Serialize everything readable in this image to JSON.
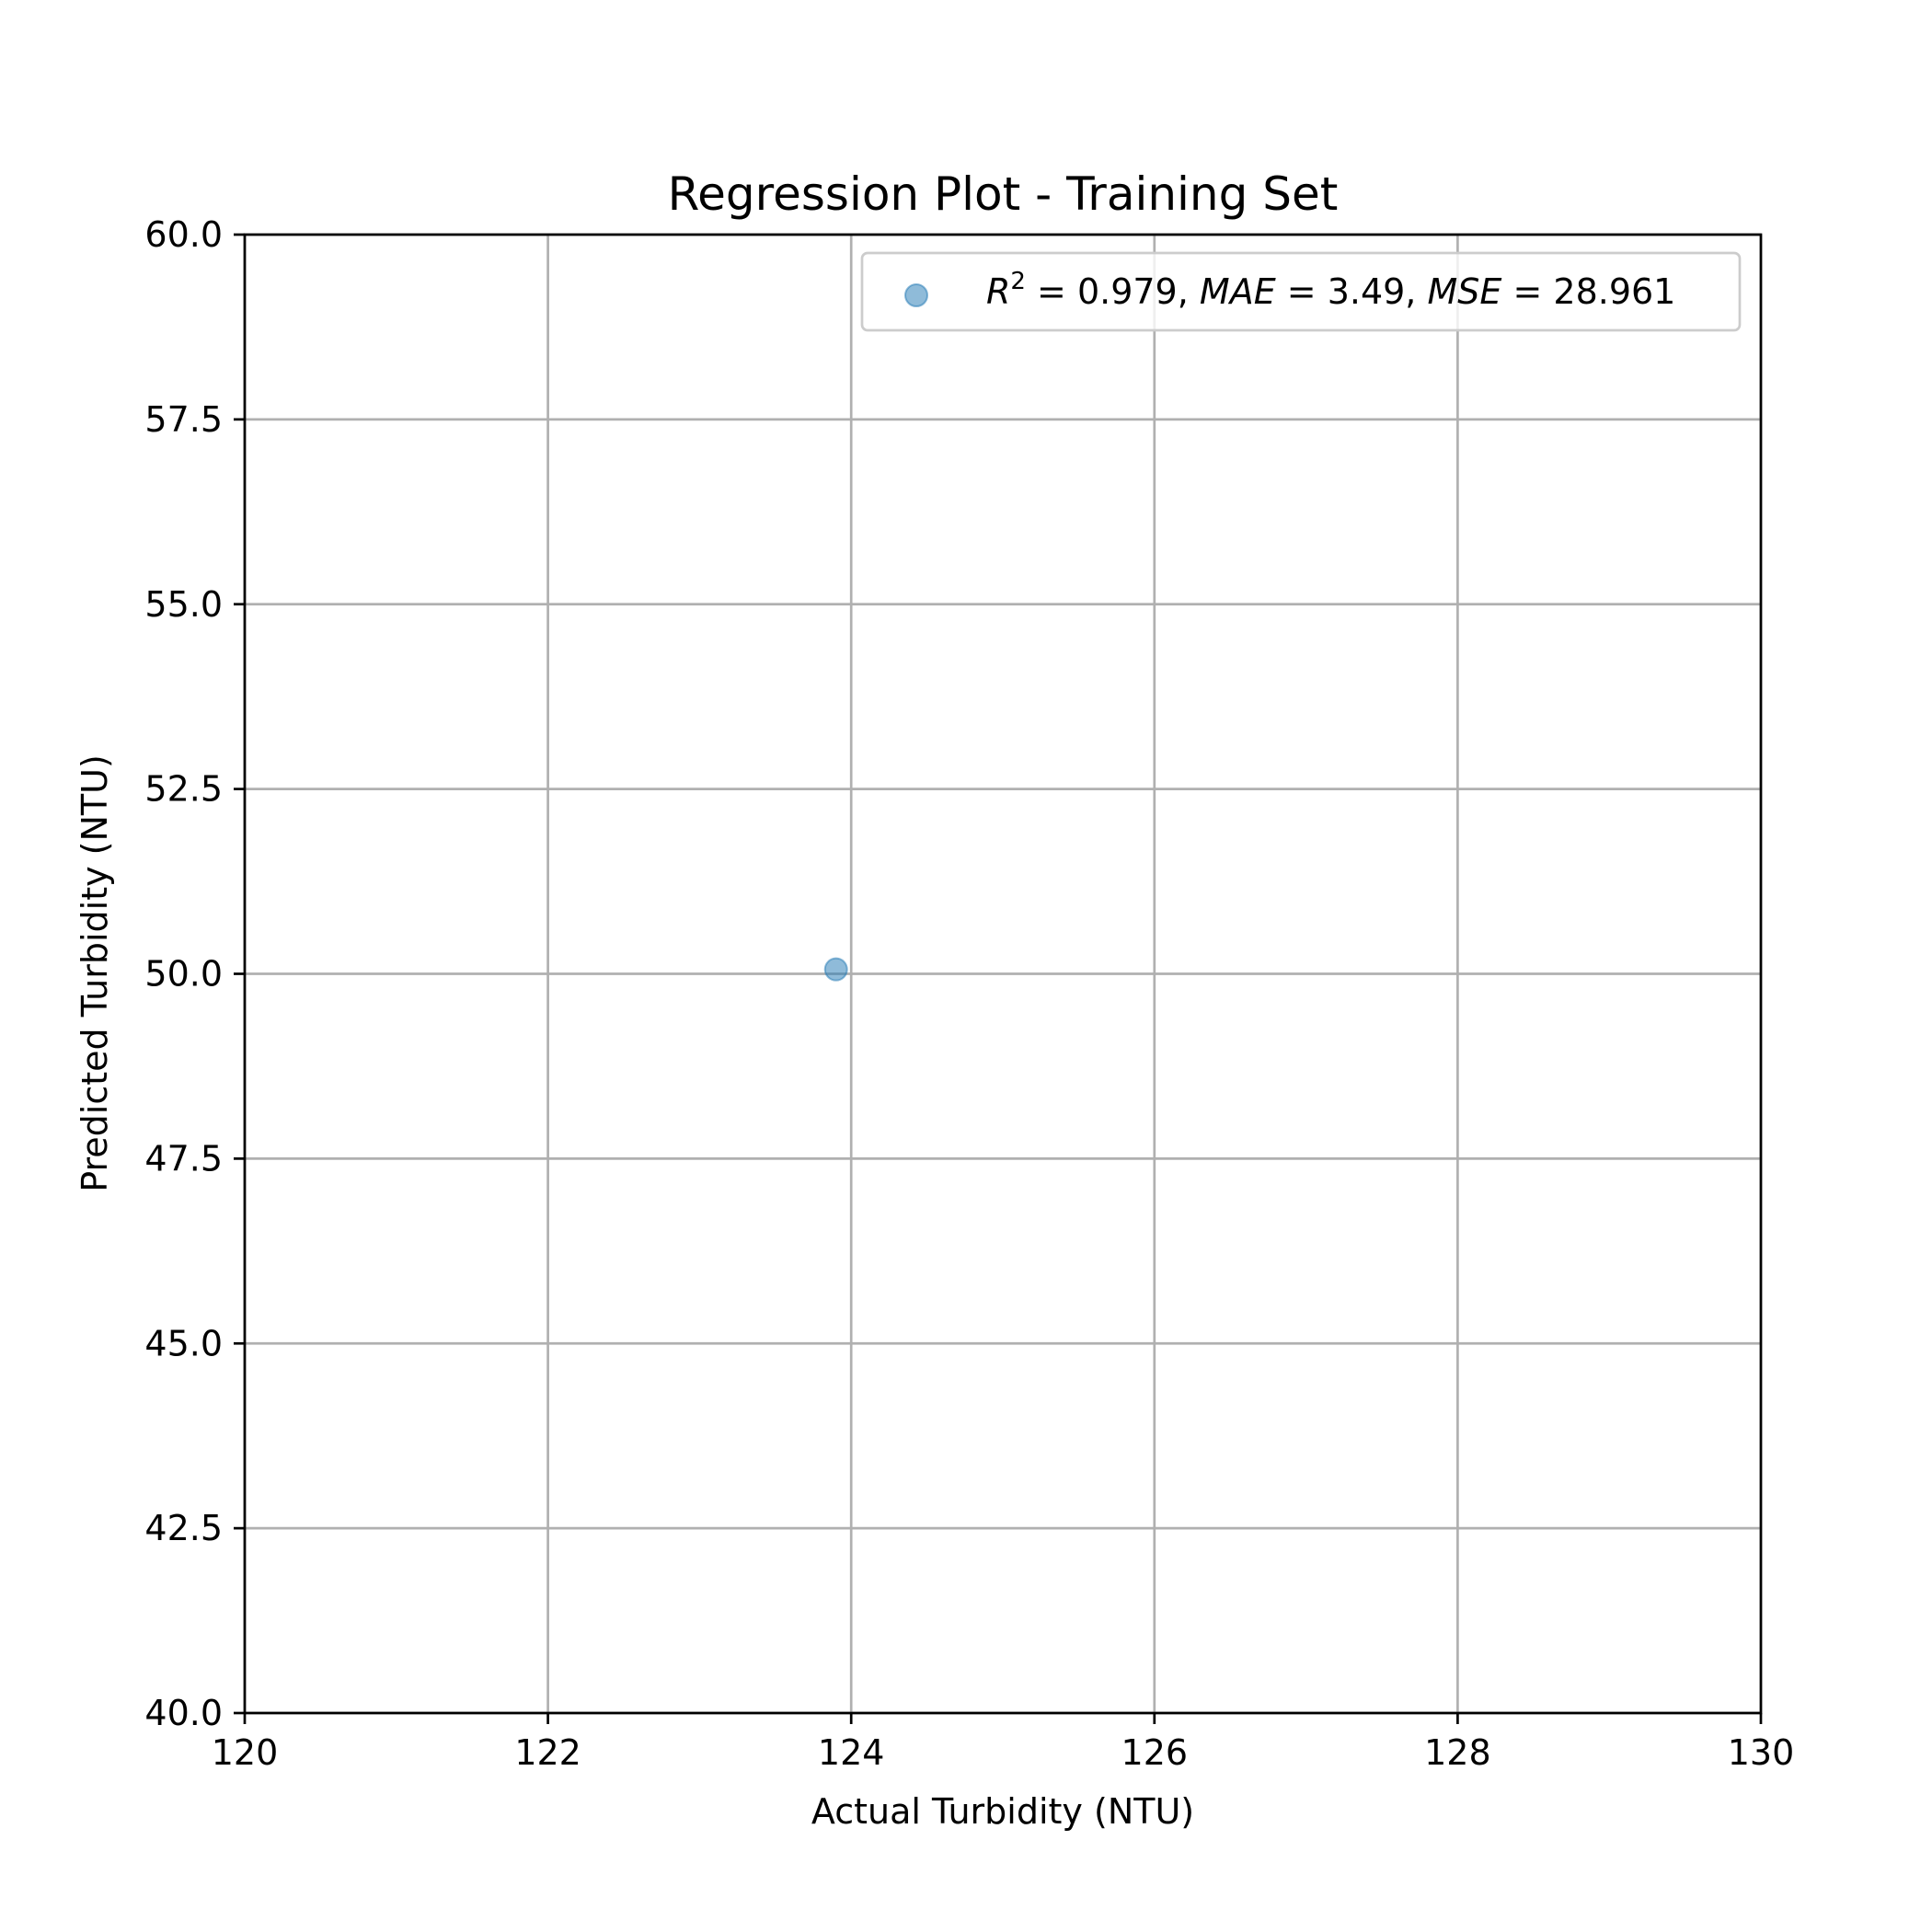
{
  "chart_data": {
    "type": "scatter",
    "title": "Regression Plot - Training Set",
    "xlabel": "Actual Turbidity (NTU)",
    "ylabel": "Predicted Turbidity (NTU)",
    "xlim": [
      120,
      130
    ],
    "ylim": [
      40,
      60
    ],
    "xticks": [
      120,
      122,
      124,
      126,
      128,
      130
    ],
    "xtick_labels": [
      "120",
      "122",
      "124",
      "126",
      "128",
      "130"
    ],
    "yticks": [
      40,
      42.5,
      45,
      47.5,
      50,
      52.5,
      55,
      57.5,
      60
    ],
    "ytick_labels": [
      "40.0",
      "42.5",
      "45.0",
      "47.5",
      "50.0",
      "52.5",
      "55.0",
      "57.5",
      "60.0"
    ],
    "grid": true,
    "legend_placement": "top-right",
    "series": [
      {
        "name": "R² = 0.979, MAE = 3.49, MSE = 28.961",
        "x": [
          123.9
        ],
        "y": [
          50.06
        ],
        "color": "#1f77b4",
        "alpha": 0.5
      }
    ],
    "legend": {
      "r2_label": "R",
      "r2_sup": "2",
      "r2_value": " = 0.979, ",
      "mae_label": "MAE",
      "mae_value": " = 3.49, ",
      "mse_label": "MSE",
      "mse_value": " = 28.961"
    }
  }
}
